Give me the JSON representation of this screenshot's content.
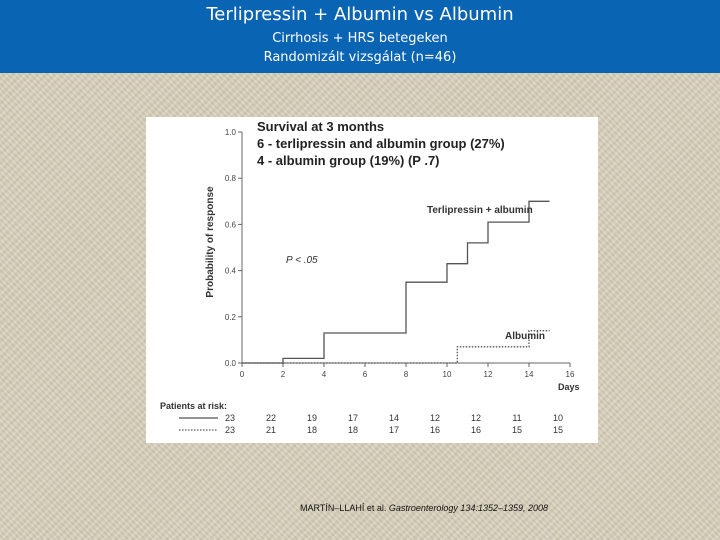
{
  "header": {
    "title": "Terlipressin + Albumin vs Albumin",
    "subtitle1": "Cirrhosis + HRS betegeken",
    "subtitle2": "Randomizált vizsgálat (n=46)",
    "background_color": "#0a64b4"
  },
  "chart_data": {
    "type": "line",
    "title": "Survival  at 3 months",
    "annotation_lines": [
      "6 - terlipressin and albumin group (27%)",
      "4 - albumin group (19%) (P   .7)"
    ],
    "p_value_text": "P < .05",
    "xlabel": "Days",
    "ylabel": "Probability of response",
    "xlim": [
      0,
      16
    ],
    "ylim": [
      0,
      1.0
    ],
    "x_ticks": [
      "0",
      "2",
      "4",
      "6",
      "8",
      "10",
      "12",
      "14",
      "16"
    ],
    "x_tick_values": [
      0,
      2,
      4,
      6,
      8,
      10,
      12,
      14,
      16
    ],
    "y_ticks": [
      "0.0",
      "0.2",
      "0.4",
      "0.6",
      "0.8",
      "1.0"
    ],
    "y_tick_values": [
      0,
      0.2,
      0.4,
      0.6,
      0.8,
      1.0
    ],
    "grid": false,
    "series": [
      {
        "name": "Terlipressin + albumin",
        "line_style": "solid",
        "step_points": [
          [
            0,
            0
          ],
          [
            2,
            0
          ],
          [
            2,
            0.02
          ],
          [
            4,
            0.02
          ],
          [
            4,
            0.13
          ],
          [
            8,
            0.13
          ],
          [
            8,
            0.35
          ],
          [
            10,
            0.35
          ],
          [
            10,
            0.43
          ],
          [
            11,
            0.43
          ],
          [
            11,
            0.52
          ],
          [
            12,
            0.52
          ],
          [
            12,
            0.61
          ],
          [
            14,
            0.61
          ],
          [
            14,
            0.7
          ],
          [
            15,
            0.7
          ]
        ]
      },
      {
        "name": "Albumin",
        "line_style": "dotted",
        "step_points": [
          [
            0,
            0
          ],
          [
            10.5,
            0
          ],
          [
            10.5,
            0.07
          ],
          [
            14,
            0.07
          ],
          [
            14,
            0.14
          ],
          [
            15,
            0.14
          ]
        ]
      }
    ],
    "risk_table": {
      "title": "Patients at risk:",
      "rows": [
        {
          "line_style": "solid",
          "values": [
            "23",
            "22",
            "19",
            "17",
            "14",
            "12",
            "12",
            "11",
            "10"
          ]
        },
        {
          "line_style": "dotted",
          "values": [
            "23",
            "21",
            "18",
            "18",
            "17",
            "16",
            "16",
            "15",
            "15"
          ]
        }
      ]
    }
  },
  "citation": {
    "authors": "MARTÍN–LLAHÍ et al.",
    "journal": "Gastroenterology 134:1352–1359, 2008"
  }
}
